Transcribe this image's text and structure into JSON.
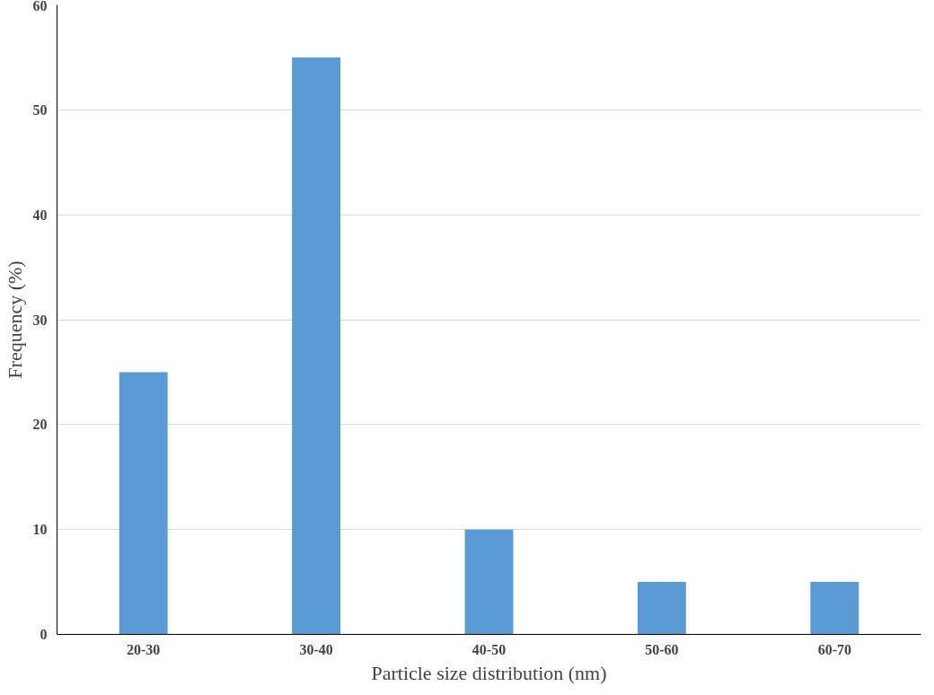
{
  "chart_data": {
    "type": "bar",
    "xlabel": "Particle size distribution (nm)",
    "ylabel": "Frequency (%)",
    "categories": [
      "20-30",
      "30-40",
      "40-50",
      "50-60",
      "60-70"
    ],
    "values": [
      25,
      55,
      10,
      5,
      5
    ],
    "color": "#5b9bd5",
    "ylim": [
      0,
      60
    ],
    "yticks": [
      0,
      10,
      20,
      30,
      40,
      50,
      60
    ],
    "grid": "y"
  }
}
